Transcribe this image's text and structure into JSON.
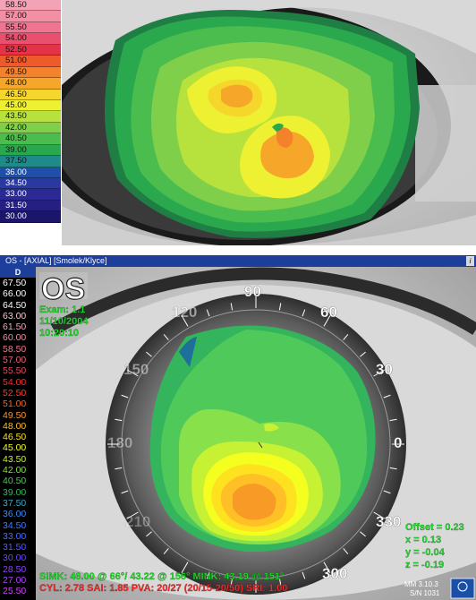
{
  "top_scale": [
    {
      "label": "58.50",
      "color": "#f4a3b6"
    },
    {
      "label": "57.00",
      "color": "#f28fa5"
    },
    {
      "label": "55.50",
      "color": "#ee7490"
    },
    {
      "label": "54.00",
      "color": "#e8506e"
    },
    {
      "label": "52.50",
      "color": "#e43248"
    },
    {
      "label": "51.00",
      "color": "#ef5a2b"
    },
    {
      "label": "49.50",
      "color": "#f3822a"
    },
    {
      "label": "48.00",
      "color": "#f6a729"
    },
    {
      "label": "46.50",
      "color": "#f5d62a"
    },
    {
      "label": "45.00",
      "color": "#eef032"
    },
    {
      "label": "43.50",
      "color": "#b7e13c"
    },
    {
      "label": "42.00",
      "color": "#7fcf4a"
    },
    {
      "label": "40.50",
      "color": "#4bbd4e"
    },
    {
      "label": "39.00",
      "color": "#2aa84e"
    },
    {
      "label": "37.50",
      "color": "#1e8a8a"
    },
    {
      "label": "36.00",
      "color": "#1f4fa8"
    },
    {
      "label": "34.50",
      "color": "#2a39a2"
    },
    {
      "label": "33.00",
      "color": "#2b2a95"
    },
    {
      "label": "31.50",
      "color": "#251f82"
    },
    {
      "label": "30.00",
      "color": "#1c166b"
    }
  ],
  "bottom": {
    "title_bar": "OS - [AXIAL] [Smolek/Klyce]",
    "help_icon": "i",
    "scale_header": "D",
    "scale": [
      {
        "label": "67.50",
        "color": "#ffffff"
      },
      {
        "label": "66.00",
        "color": "#ffffff"
      },
      {
        "label": "64.50",
        "color": "#ffffff"
      },
      {
        "label": "63.00",
        "color": "#f6c5cf"
      },
      {
        "label": "61.50",
        "color": "#f3a9b8"
      },
      {
        "label": "60.00",
        "color": "#f08fa2"
      },
      {
        "label": "58.50",
        "color": "#ec7a8f"
      },
      {
        "label": "57.00",
        "color": "#e8647c"
      },
      {
        "label": "55.50",
        "color": "#e54c64"
      },
      {
        "label": "54.00",
        "color": "#ff2a2a"
      },
      {
        "label": "52.50",
        "color": "#ff3b2b"
      },
      {
        "label": "51.00",
        "color": "#f06a22"
      },
      {
        "label": "49.50",
        "color": "#f79a26"
      },
      {
        "label": "48.00",
        "color": "#ffbf26"
      },
      {
        "label": "46.50",
        "color": "#ffe21f"
      },
      {
        "label": "45.00",
        "color": "#f4ff1f"
      },
      {
        "label": "43.50",
        "color": "#c6f233"
      },
      {
        "label": "42.00",
        "color": "#88e04a"
      },
      {
        "label": "40.50",
        "color": "#4ec95a"
      },
      {
        "label": "39.00",
        "color": "#34b45c"
      },
      {
        "label": "37.50",
        "color": "#3aa6c8"
      },
      {
        "label": "36.00",
        "color": "#3b8cf0"
      },
      {
        "label": "34.50",
        "color": "#3f7bff"
      },
      {
        "label": "33.00",
        "color": "#4a6bff"
      },
      {
        "label": "31.50",
        "color": "#5a58ff"
      },
      {
        "label": "30.00",
        "color": "#6a48ff"
      },
      {
        "label": "28.50",
        "color": "#8a44ff"
      },
      {
        "label": "27.00",
        "color": "#b040ff"
      },
      {
        "label": "25.50",
        "color": "#d040ff"
      }
    ],
    "eye_label": "OS",
    "exam": "Exam: 1.1",
    "date": "11/10/2004",
    "time": "10:20:10",
    "meridians": [
      "90",
      "60",
      "30",
      "0",
      "330",
      "300",
      "120",
      "150",
      "180",
      "210"
    ],
    "offset": "Offset = 0.23",
    "x": "x = 0.13",
    "y": "y = -0.04",
    "z": "z = -0.19",
    "simk_line": "SIMK: 46.00 @ 66°/ 43.22 @ 156°   MINK: 43.19 @ 151°",
    "cyl_line": "CYL: 2.78 SAI: 1.85 PVA: 20/27 (20/15-20/50) SRI: 1.00",
    "version": "MM 3.10.3",
    "serial": "S/N 1031"
  }
}
